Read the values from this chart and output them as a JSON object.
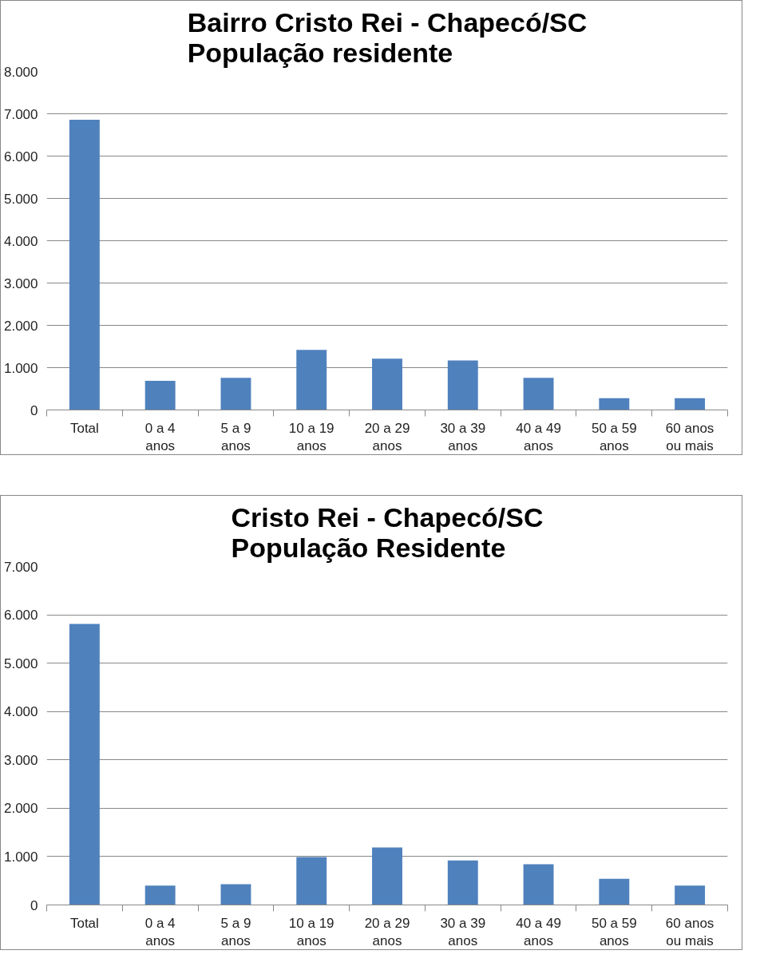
{
  "chart_data": [
    {
      "type": "bar",
      "title": "Bairro Cristo Rei - Chapecó/SC\nPopulação residente",
      "categories": [
        "Total",
        "0 a 4\nanos",
        "5 a 9\nanos",
        "10 a 19\nanos",
        "20 a 29\nanos",
        "30 a 39\nanos",
        "40 a 49\nanos",
        "50 a 59\nanos",
        "60 anos\nou mais"
      ],
      "color": "#4f81bd",
      "values": [
        6860,
        690,
        760,
        1420,
        1210,
        1170,
        760,
        280,
        280
      ],
      "ylim": [
        0,
        8000
      ],
      "yticks": [
        0,
        {
          "value": 1000,
          "label": "1.000"
        },
        {
          "value": 2000,
          "label": "2.000"
        },
        {
          "value": 3000,
          "label": "3.000"
        },
        {
          "value": 4000,
          "label": "4.000"
        },
        {
          "value": 5000,
          "label": "5.000"
        },
        {
          "value": 6000,
          "label": "6.000"
        },
        {
          "value": 7000,
          "label": "7.000"
        },
        {
          "value": 8000,
          "label": "8.000"
        }
      ],
      "grid": "y"
    },
    {
      "type": "bar",
      "title": "Cristo Rei - Chapecó/SC\nPopulação Residente",
      "categories": [
        "Total",
        "0 a 4\nanos",
        "5 a 9\nanos",
        "10 a 19\nanos",
        "20 a 29\nanos",
        "30 a 39\nanos",
        "40 a 49\nanos",
        "50 a 59\nanos",
        "60 anos\nou mais"
      ],
      "color": "#4f81bd",
      "values": [
        5810,
        400,
        430,
        990,
        1190,
        920,
        840,
        540,
        400
      ],
      "ylim": [
        0,
        7000
      ],
      "yticks": [
        0,
        {
          "value": 1000,
          "label": "1.000"
        },
        {
          "value": 2000,
          "label": "2.000"
        },
        {
          "value": 3000,
          "label": "3.000"
        },
        {
          "value": 4000,
          "label": "4.000"
        },
        {
          "value": 5000,
          "label": "5.000"
        },
        {
          "value": 6000,
          "label": "6.000"
        },
        {
          "value": 7000,
          "label": "7.000"
        }
      ],
      "grid": "y"
    }
  ]
}
